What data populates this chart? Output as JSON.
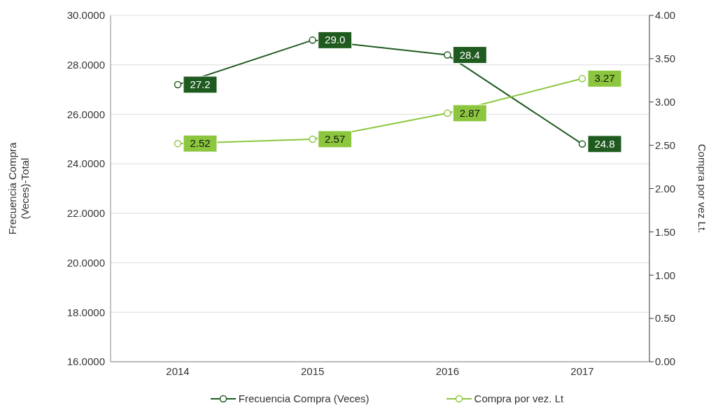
{
  "chart_data": {
    "type": "line",
    "categories": [
      "2014",
      "2015",
      "2016",
      "2017"
    ],
    "ylabel": "Frecuencia Compra (Veces)-Total",
    "y2label": "Compra por vez Lt.",
    "series": [
      {
        "name": "Frecuencia Compra (Veces)",
        "color": "#1f5a1f",
        "values": [
          27.2,
          29.0,
          28.4,
          24.8
        ],
        "value_labels": [
          "27.2",
          "29.0",
          "28.4",
          "24.8"
        ]
      },
      {
        "name": "Compra por vez. Lt",
        "color": "#8cc63e",
        "axis": "y2",
        "values": [
          2.52,
          2.57,
          2.87,
          3.27
        ],
        "value_labels": [
          "2.52",
          "2.57",
          "2.87",
          "3.27"
        ]
      }
    ],
    "ylim": [
      16,
      30
    ],
    "yticks": [
      {
        "value": 16,
        "label": "16.0000"
      },
      {
        "value": 18,
        "label": "18.0000"
      },
      {
        "value": 20,
        "label": "20.0000"
      },
      {
        "value": 22,
        "label": "22.0000"
      },
      {
        "value": 24,
        "label": "24.0000"
      },
      {
        "value": 26,
        "label": "26.0000"
      },
      {
        "value": 28,
        "label": "28.0000"
      },
      {
        "value": 30,
        "label": "30.0000"
      }
    ],
    "y2lim": [
      0,
      4
    ],
    "y2ticks": [
      {
        "value": 0,
        "label": "0.00"
      },
      {
        "value": 0.5,
        "label": "0.50"
      },
      {
        "value": 1,
        "label": "1.00"
      },
      {
        "value": 1.5,
        "label": "1.50"
      },
      {
        "value": 2,
        "label": "2.00"
      },
      {
        "value": 2.5,
        "label": "2.50"
      },
      {
        "value": 3,
        "label": "3.00"
      },
      {
        "value": 3.5,
        "label": "3.50"
      },
      {
        "value": 4,
        "label": "4.00"
      }
    ],
    "grid": "y",
    "legend": "bottom",
    "marker": "circle",
    "line_style": "solid"
  }
}
